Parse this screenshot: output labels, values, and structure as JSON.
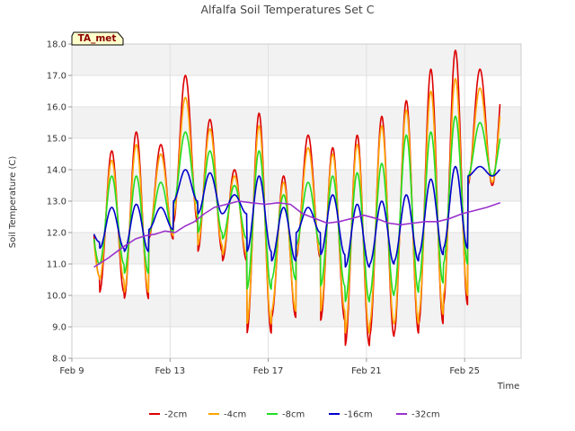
{
  "chart_data": {
    "type": "line",
    "title": "Alfalfa Soil Temperatures Set C",
    "xlabel": "Time",
    "ylabel": "Soil Temperature (C)",
    "ylim": [
      8.0,
      18.0
    ],
    "xlim": [
      0,
      18.3
    ],
    "y_ticks": [
      "8.0",
      "9.0",
      "10.0",
      "11.0",
      "12.0",
      "13.0",
      "14.0",
      "15.0",
      "16.0",
      "17.0",
      "18.0"
    ],
    "x_ticks": [
      {
        "label": "Feb 9",
        "day": 0
      },
      {
        "label": "Feb 13",
        "day": 4
      },
      {
        "label": "Feb 17",
        "day": 8
      },
      {
        "label": "Feb 21",
        "day": 12
      },
      {
        "label": "Feb 25",
        "day": 16
      }
    ],
    "grid": true,
    "legend_position": "bottom",
    "tag_label": "TA_met",
    "day_start": 0.9,
    "day_end": 17.45,
    "series": [
      {
        "name": "-2cm",
        "color": "#dd0000",
        "mins": [
          10.6,
          10.1,
          9.9,
          11.8,
          12.3,
          11.4,
          11.1,
          8.8,
          9.3,
          11.2,
          9.2,
          8.4,
          8.7,
          8.8,
          9.1,
          9.7,
          13.5
        ],
        "maxs": [
          13.7,
          14.6,
          15.2,
          14.8,
          17.0,
          15.6,
          14.0,
          15.8,
          13.8,
          15.1,
          14.7,
          15.1,
          15.7,
          16.2,
          17.2,
          17.8,
          17.2
        ]
      },
      {
        "name": "-4cm",
        "color": "#ffa500",
        "mins": [
          10.6,
          10.5,
          10.1,
          11.9,
          12.5,
          11.6,
          11.3,
          9.1,
          9.5,
          11.3,
          9.5,
          8.8,
          9.1,
          9.1,
          9.4,
          10.0,
          13.6
        ],
        "maxs": [
          13.3,
          14.3,
          14.8,
          14.5,
          16.3,
          15.3,
          13.8,
          15.4,
          13.6,
          14.7,
          14.5,
          14.8,
          15.4,
          15.9,
          16.5,
          16.9,
          16.6
        ]
      },
      {
        "name": "-8cm",
        "color": "#22dd22",
        "mins": [
          11.0,
          11.0,
          10.7,
          12.0,
          12.9,
          12.0,
          11.8,
          10.2,
          10.5,
          11.6,
          10.3,
          9.8,
          10.0,
          10.1,
          10.4,
          11.0,
          13.8
        ],
        "maxs": [
          12.9,
          13.8,
          13.8,
          13.6,
          15.2,
          14.6,
          13.5,
          14.6,
          13.2,
          13.6,
          13.8,
          13.9,
          14.2,
          15.1,
          15.2,
          15.7,
          15.5
        ]
      },
      {
        "name": "-16cm",
        "color": "#0000cc",
        "mins": [
          11.7,
          11.5,
          11.4,
          12.1,
          13.0,
          12.6,
          12.6,
          11.4,
          11.1,
          12.0,
          11.3,
          10.9,
          11.0,
          11.1,
          11.3,
          11.5,
          13.8
        ],
        "maxs": [
          12.3,
          12.8,
          12.9,
          12.8,
          14.0,
          13.9,
          13.2,
          13.8,
          12.8,
          12.8,
          13.2,
          12.9,
          13.0,
          13.2,
          13.7,
          14.1,
          14.1
        ]
      },
      {
        "name": "-32cm",
        "color": "#9932cc",
        "points": [
          [
            0.9,
            10.9
          ],
          [
            1.5,
            11.2
          ],
          [
            2.1,
            11.55
          ],
          [
            2.6,
            11.8
          ],
          [
            3.0,
            11.9
          ],
          [
            3.4,
            11.95
          ],
          [
            3.8,
            12.05
          ],
          [
            4.2,
            12.0
          ],
          [
            4.6,
            12.2
          ],
          [
            5.0,
            12.35
          ],
          [
            5.4,
            12.6
          ],
          [
            5.8,
            12.8
          ],
          [
            6.3,
            12.9
          ],
          [
            6.8,
            13.0
          ],
          [
            7.3,
            12.95
          ],
          [
            7.9,
            12.9
          ],
          [
            8.4,
            12.95
          ],
          [
            8.9,
            12.9
          ],
          [
            9.4,
            12.6
          ],
          [
            9.9,
            12.45
          ],
          [
            10.4,
            12.3
          ],
          [
            10.9,
            12.35
          ],
          [
            11.4,
            12.45
          ],
          [
            11.9,
            12.55
          ],
          [
            12.4,
            12.45
          ],
          [
            12.9,
            12.3
          ],
          [
            13.4,
            12.25
          ],
          [
            13.9,
            12.3
          ],
          [
            14.4,
            12.35
          ],
          [
            14.9,
            12.35
          ],
          [
            15.4,
            12.45
          ],
          [
            15.9,
            12.6
          ],
          [
            16.4,
            12.7
          ],
          [
            16.9,
            12.8
          ],
          [
            17.45,
            12.95
          ]
        ]
      }
    ]
  }
}
